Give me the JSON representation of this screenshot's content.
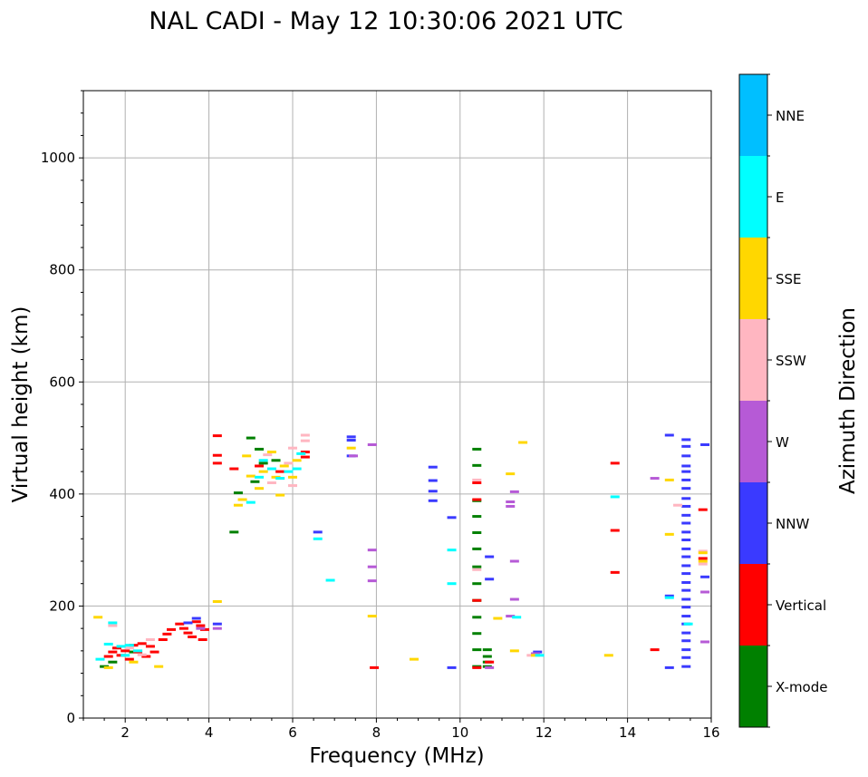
{
  "chart_data": {
    "type": "scatter",
    "title": "NAL CADI - May 12 10:30:06 2021 UTC",
    "xlabel": "Frequency (MHz)",
    "ylabel": "Virtual height (km)",
    "xlim": [
      1,
      16
    ],
    "ylim": [
      0,
      1120
    ],
    "xticks": [
      2,
      4,
      6,
      8,
      10,
      12,
      14,
      16
    ],
    "yticks": [
      0,
      200,
      400,
      600,
      800,
      1000
    ],
    "grid": true,
    "colorbar": {
      "label": "Azimuth Direction",
      "categories": [
        "X-mode",
        "Vertical",
        "NNW",
        "W",
        "SSW",
        "SSE",
        "E",
        "NNE"
      ],
      "colors": [
        "#008000",
        "#ff0000",
        "#3a3aff",
        "#b65ad6",
        "#ffb6c1",
        "#ffd700",
        "#00ffff",
        "#00bfff"
      ]
    },
    "series": [
      {
        "name": "X-mode",
        "points": [
          [
            1.5,
            92
          ],
          [
            1.7,
            100
          ],
          [
            2.2,
            118
          ],
          [
            4.6,
            332
          ],
          [
            4.7,
            402
          ],
          [
            5.0,
            500
          ],
          [
            5.2,
            480
          ],
          [
            5.3,
            455
          ],
          [
            5.6,
            460
          ],
          [
            5.1,
            422
          ],
          [
            10.4,
            480
          ],
          [
            10.4,
            451
          ],
          [
            10.4,
            388
          ],
          [
            10.4,
            360
          ],
          [
            10.4,
            331
          ],
          [
            10.4,
            302
          ],
          [
            10.4,
            270
          ],
          [
            10.4,
            240
          ],
          [
            10.4,
            210
          ],
          [
            10.4,
            180
          ],
          [
            10.4,
            151
          ],
          [
            10.4,
            122
          ],
          [
            10.4,
            92
          ],
          [
            10.65,
            122
          ],
          [
            10.65,
            110
          ],
          [
            10.65,
            100
          ],
          [
            10.65,
            92
          ]
        ]
      },
      {
        "name": "Vertical",
        "points": [
          [
            1.6,
            110
          ],
          [
            1.7,
            118
          ],
          [
            1.8,
            125
          ],
          [
            1.9,
            112
          ],
          [
            2.0,
            120
          ],
          [
            2.1,
            105
          ],
          [
            2.2,
            130
          ],
          [
            2.3,
            118
          ],
          [
            2.4,
            133
          ],
          [
            2.5,
            110
          ],
          [
            2.6,
            128
          ],
          [
            2.7,
            118
          ],
          [
            2.9,
            140
          ],
          [
            3.0,
            150
          ],
          [
            3.1,
            158
          ],
          [
            3.3,
            168
          ],
          [
            3.4,
            160
          ],
          [
            3.5,
            152
          ],
          [
            3.6,
            145
          ],
          [
            3.7,
            172
          ],
          [
            3.8,
            165
          ],
          [
            3.9,
            158
          ],
          [
            3.85,
            140
          ],
          [
            4.2,
            504
          ],
          [
            4.2,
            469
          ],
          [
            4.2,
            455
          ],
          [
            6.3,
            466
          ],
          [
            6.3,
            475
          ],
          [
            5.2,
            450
          ],
          [
            5.7,
            440
          ],
          [
            4.6,
            445
          ],
          [
            10.4,
            420
          ],
          [
            10.4,
            390
          ],
          [
            10.4,
            210
          ],
          [
            10.4,
            90
          ],
          [
            10.7,
            100
          ],
          [
            7.95,
            90
          ],
          [
            13.7,
            455
          ],
          [
            13.7,
            335
          ],
          [
            13.7,
            260
          ],
          [
            14.65,
            122
          ],
          [
            15.8,
            372
          ],
          [
            15.8,
            285
          ]
        ]
      },
      {
        "name": "NNW",
        "points": [
          [
            3.5,
            170
          ],
          [
            3.7,
            178
          ],
          [
            4.2,
            168
          ],
          [
            6.6,
            332
          ],
          [
            7.4,
            502
          ],
          [
            7.4,
            496
          ],
          [
            7.4,
            468
          ],
          [
            9.35,
            448
          ],
          [
            9.35,
            424
          ],
          [
            9.35,
            405
          ],
          [
            9.35,
            388
          ],
          [
            9.8,
            358
          ],
          [
            9.8,
            90
          ],
          [
            10.7,
            288
          ],
          [
            10.7,
            248
          ],
          [
            11.85,
            118
          ],
          [
            15.0,
            505
          ],
          [
            15.4,
            497
          ],
          [
            15.4,
            485
          ],
          [
            15.4,
            468
          ],
          [
            15.4,
            450
          ],
          [
            15.4,
            440
          ],
          [
            15.4,
            425
          ],
          [
            15.4,
            410
          ],
          [
            15.4,
            392
          ],
          [
            15.4,
            378
          ],
          [
            15.4,
            362
          ],
          [
            15.4,
            348
          ],
          [
            15.4,
            332
          ],
          [
            15.4,
            318
          ],
          [
            15.4,
            302
          ],
          [
            15.4,
            288
          ],
          [
            15.4,
            272
          ],
          [
            15.4,
            258
          ],
          [
            15.4,
            242
          ],
          [
            15.4,
            228
          ],
          [
            15.4,
            212
          ],
          [
            15.4,
            198
          ],
          [
            15.4,
            182
          ],
          [
            15.4,
            168
          ],
          [
            15.4,
            152
          ],
          [
            15.4,
            138
          ],
          [
            15.4,
            122
          ],
          [
            15.4,
            108
          ],
          [
            15.4,
            92
          ],
          [
            15.0,
            90
          ],
          [
            15.0,
            218
          ],
          [
            15.85,
            488
          ],
          [
            15.85,
            252
          ]
        ]
      },
      {
        "name": "W",
        "points": [
          [
            3.8,
            160
          ],
          [
            4.2,
            160
          ],
          [
            7.9,
            488
          ],
          [
            7.9,
            300
          ],
          [
            7.9,
            270
          ],
          [
            7.9,
            245
          ],
          [
            7.45,
            468
          ],
          [
            11.2,
            386
          ],
          [
            11.2,
            378
          ],
          [
            11.3,
            404
          ],
          [
            11.3,
            280
          ],
          [
            11.3,
            212
          ],
          [
            11.2,
            182
          ],
          [
            11.8,
            115
          ],
          [
            10.7,
            90
          ],
          [
            14.65,
            428
          ],
          [
            15.85,
            136
          ],
          [
            15.85,
            225
          ]
        ]
      },
      {
        "name": "SSW",
        "points": [
          [
            1.7,
            165
          ],
          [
            2.1,
            125
          ],
          [
            2.4,
            113
          ],
          [
            2.6,
            140
          ],
          [
            6.3,
            505
          ],
          [
            6.3,
            495
          ],
          [
            6.0,
            482
          ],
          [
            5.4,
            470
          ],
          [
            5.9,
            455
          ],
          [
            5.5,
            420
          ],
          [
            6.0,
            415
          ],
          [
            10.4,
            425
          ],
          [
            10.4,
            265
          ],
          [
            11.7,
            112
          ],
          [
            15.2,
            380
          ],
          [
            15.8,
            298
          ],
          [
            15.8,
            275
          ]
        ]
      },
      {
        "name": "SSE",
        "points": [
          [
            1.35,
            180
          ],
          [
            1.6,
            90
          ],
          [
            2.2,
            100
          ],
          [
            2.8,
            92
          ],
          [
            4.2,
            208
          ],
          [
            4.7,
            380
          ],
          [
            4.8,
            390
          ],
          [
            4.9,
            468
          ],
          [
            5.0,
            432
          ],
          [
            5.2,
            410
          ],
          [
            5.3,
            440
          ],
          [
            5.5,
            475
          ],
          [
            5.6,
            430
          ],
          [
            5.7,
            398
          ],
          [
            5.8,
            450
          ],
          [
            6.0,
            430
          ],
          [
            6.1,
            460
          ],
          [
            7.4,
            482
          ],
          [
            7.9,
            182
          ],
          [
            8.9,
            105
          ],
          [
            10.9,
            178
          ],
          [
            11.2,
            436
          ],
          [
            11.3,
            120
          ],
          [
            11.5,
            492
          ],
          [
            11.8,
            112
          ],
          [
            13.55,
            112
          ],
          [
            15.0,
            425
          ],
          [
            15.0,
            328
          ],
          [
            15.8,
            295
          ],
          [
            15.8,
            280
          ]
        ]
      },
      {
        "name": "E",
        "points": [
          [
            1.4,
            105
          ],
          [
            1.6,
            132
          ],
          [
            1.7,
            170
          ],
          [
            1.9,
            128
          ],
          [
            2.0,
            112
          ],
          [
            2.1,
            130
          ],
          [
            2.3,
            120
          ],
          [
            5.0,
            385
          ],
          [
            5.2,
            430
          ],
          [
            5.3,
            460
          ],
          [
            5.5,
            445
          ],
          [
            5.7,
            428
          ],
          [
            5.9,
            440
          ],
          [
            6.1,
            445
          ],
          [
            6.2,
            472
          ],
          [
            6.6,
            320
          ],
          [
            6.9,
            246
          ],
          [
            9.8,
            300
          ],
          [
            9.8,
            240
          ],
          [
            11.35,
            180
          ],
          [
            11.9,
            112
          ],
          [
            13.7,
            395
          ],
          [
            15.0,
            215
          ],
          [
            15.45,
            168
          ]
        ]
      }
    ]
  }
}
